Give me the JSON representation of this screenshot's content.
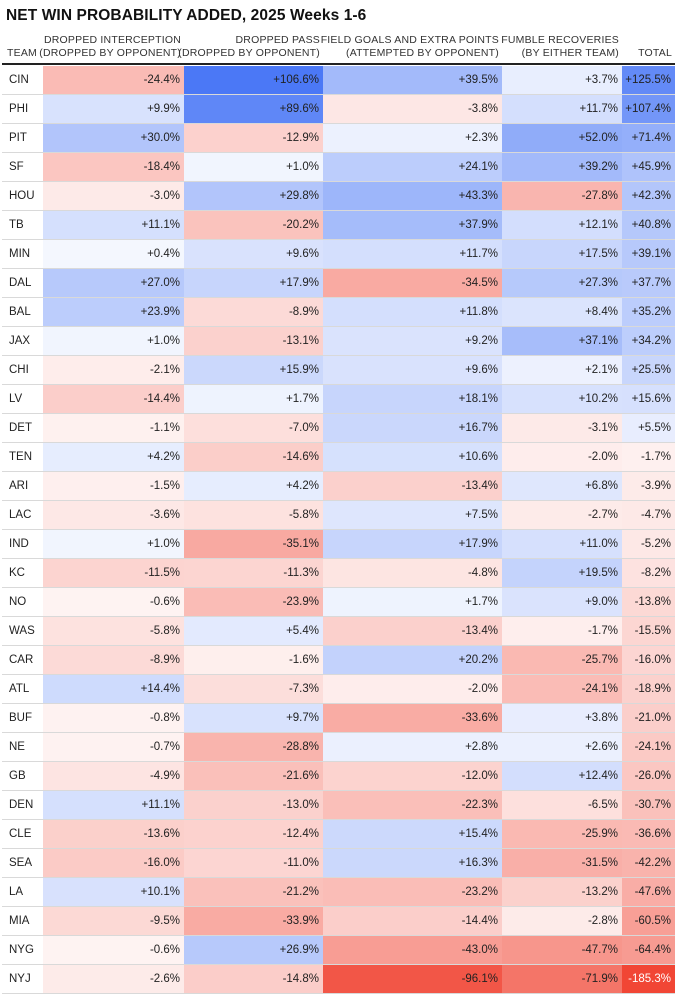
{
  "title": "NET WIN PROBABILITY ADDED, 2025 Weeks 1-6",
  "columns": [
    {
      "key": "team",
      "lines": [
        "",
        "TEAM"
      ]
    },
    {
      "key": "di",
      "lines": [
        "DROPPED INTERCEPTION",
        "(DROPPED BY OPPONENT)"
      ]
    },
    {
      "key": "dp",
      "lines": [
        "DROPPED PASS",
        "(DROPPED BY OPPONENT)"
      ]
    },
    {
      "key": "fg",
      "lines": [
        "FIELD GOALS AND EXTRA POINTS",
        "(ATTEMPTED BY OPPONENT)"
      ]
    },
    {
      "key": "fr",
      "lines": [
        "FUMBLE RECOVERIES",
        "(BY EITHER TEAM)"
      ]
    },
    {
      "key": "total",
      "lines": [
        "",
        "TOTAL"
      ]
    }
  ],
  "colors": {
    "positive": "#3b6cf5",
    "negative": "#f03a28",
    "text": "#222222",
    "grid": "#d9d9d9"
  },
  "chart_data": {
    "type": "table",
    "title": "NET WIN PROBABILITY ADDED, 2025 Weeks 1-6",
    "unit": "%",
    "rows": [
      {
        "team": "CIN",
        "di": "-24.4%",
        "dp": "+106.6%",
        "fg": "+39.5%",
        "fr": "+3.7%",
        "total": "+125.5%"
      },
      {
        "team": "PHI",
        "di": "+9.9%",
        "dp": "+89.6%",
        "fg": "-3.8%",
        "fr": "+11.7%",
        "total": "+107.4%"
      },
      {
        "team": "PIT",
        "di": "+30.0%",
        "dp": "-12.9%",
        "fg": "+2.3%",
        "fr": "+52.0%",
        "total": "+71.4%"
      },
      {
        "team": "SF",
        "di": "-18.4%",
        "dp": "+1.0%",
        "fg": "+24.1%",
        "fr": "+39.2%",
        "total": "+45.9%"
      },
      {
        "team": "HOU",
        "di": "-3.0%",
        "dp": "+29.8%",
        "fg": "+43.3%",
        "fr": "-27.8%",
        "total": "+42.3%"
      },
      {
        "team": "TB",
        "di": "+11.1%",
        "dp": "-20.2%",
        "fg": "+37.9%",
        "fr": "+12.1%",
        "total": "+40.8%"
      },
      {
        "team": "MIN",
        "di": "+0.4%",
        "dp": "+9.6%",
        "fg": "+11.7%",
        "fr": "+17.5%",
        "total": "+39.1%"
      },
      {
        "team": "DAL",
        "di": "+27.0%",
        "dp": "+17.9%",
        "fg": "-34.5%",
        "fr": "+27.3%",
        "total": "+37.7%"
      },
      {
        "team": "BAL",
        "di": "+23.9%",
        "dp": "-8.9%",
        "fg": "+11.8%",
        "fr": "+8.4%",
        "total": "+35.2%"
      },
      {
        "team": "JAX",
        "di": "+1.0%",
        "dp": "-13.1%",
        "fg": "+9.2%",
        "fr": "+37.1%",
        "total": "+34.2%"
      },
      {
        "team": "CHI",
        "di": "-2.1%",
        "dp": "+15.9%",
        "fg": "+9.6%",
        "fr": "+2.1%",
        "total": "+25.5%"
      },
      {
        "team": "LV",
        "di": "-14.4%",
        "dp": "+1.7%",
        "fg": "+18.1%",
        "fr": "+10.2%",
        "total": "+15.6%"
      },
      {
        "team": "DET",
        "di": "-1.1%",
        "dp": "-7.0%",
        "fg": "+16.7%",
        "fr": "-3.1%",
        "total": "+5.5%"
      },
      {
        "team": "TEN",
        "di": "+4.2%",
        "dp": "-14.6%",
        "fg": "+10.6%",
        "fr": "-2.0%",
        "total": "-1.7%"
      },
      {
        "team": "ARI",
        "di": "-1.5%",
        "dp": "+4.2%",
        "fg": "-13.4%",
        "fr": "+6.8%",
        "total": "-3.9%"
      },
      {
        "team": "LAC",
        "di": "-3.6%",
        "dp": "-5.8%",
        "fg": "+7.5%",
        "fr": "-2.7%",
        "total": "-4.7%"
      },
      {
        "team": "IND",
        "di": "+1.0%",
        "dp": "-35.1%",
        "fg": "+17.9%",
        "fr": "+11.0%",
        "total": "-5.2%"
      },
      {
        "team": "KC",
        "di": "-11.5%",
        "dp": "-11.3%",
        "fg": "-4.8%",
        "fr": "+19.5%",
        "total": "-8.2%"
      },
      {
        "team": "NO",
        "di": "-0.6%",
        "dp": "-23.9%",
        "fg": "+1.7%",
        "fr": "+9.0%",
        "total": "-13.8%"
      },
      {
        "team": "WAS",
        "di": "-5.8%",
        "dp": "+5.4%",
        "fg": "-13.4%",
        "fr": "-1.7%",
        "total": "-15.5%"
      },
      {
        "team": "CAR",
        "di": "-8.9%",
        "dp": "-1.6%",
        "fg": "+20.2%",
        "fr": "-25.7%",
        "total": "-16.0%"
      },
      {
        "team": "ATL",
        "di": "+14.4%",
        "dp": "-7.3%",
        "fg": "-2.0%",
        "fr": "-24.1%",
        "total": "-18.9%"
      },
      {
        "team": "BUF",
        "di": "-0.8%",
        "dp": "+9.7%",
        "fg": "-33.6%",
        "fr": "+3.8%",
        "total": "-21.0%"
      },
      {
        "team": "NE",
        "di": "-0.7%",
        "dp": "-28.8%",
        "fg": "+2.8%",
        "fr": "+2.6%",
        "total": "-24.1%"
      },
      {
        "team": "GB",
        "di": "-4.9%",
        "dp": "-21.6%",
        "fg": "-12.0%",
        "fr": "+12.4%",
        "total": "-26.0%"
      },
      {
        "team": "DEN",
        "di": "+11.1%",
        "dp": "-13.0%",
        "fg": "-22.3%",
        "fr": "-6.5%",
        "total": "-30.7%"
      },
      {
        "team": "CLE",
        "di": "-13.6%",
        "dp": "-12.4%",
        "fg": "+15.4%",
        "fr": "-25.9%",
        "total": "-36.6%"
      },
      {
        "team": "SEA",
        "di": "-16.0%",
        "dp": "-11.0%",
        "fg": "+16.3%",
        "fr": "-31.5%",
        "total": "-42.2%"
      },
      {
        "team": "LA",
        "di": "+10.1%",
        "dp": "-21.2%",
        "fg": "-23.2%",
        "fr": "-13.2%",
        "total": "-47.6%"
      },
      {
        "team": "MIA",
        "di": "-9.5%",
        "dp": "-33.9%",
        "fg": "-14.4%",
        "fr": "-2.8%",
        "total": "-60.5%"
      },
      {
        "team": "NYG",
        "di": "-0.6%",
        "dp": "+26.9%",
        "fg": "-43.0%",
        "fr": "-47.7%",
        "total": "-64.4%"
      },
      {
        "team": "NYJ",
        "di": "-2.6%",
        "dp": "-14.8%",
        "fg": "-96.1%",
        "fr": "-71.9%",
        "total": "-185.3%"
      }
    ]
  }
}
